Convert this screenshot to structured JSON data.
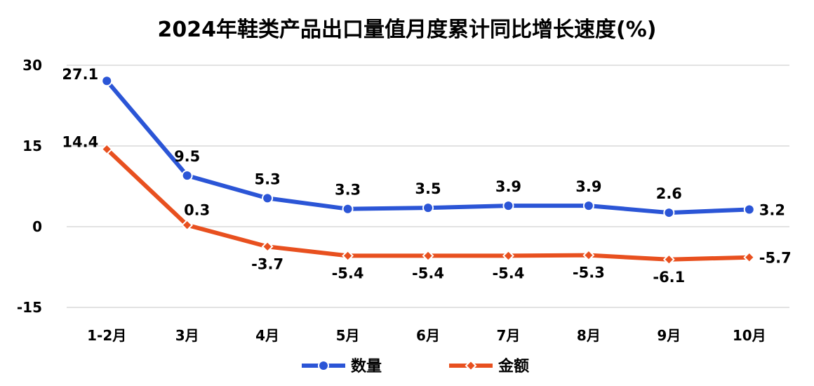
{
  "chart_data": {
    "type": "line",
    "title": "2024年鞋类产品出口量值月度累计同比增长速度(%)",
    "categories": [
      "1-2月",
      "3月",
      "4月",
      "5月",
      "6月",
      "7月",
      "8月",
      "9月",
      "10月"
    ],
    "series": [
      {
        "name": "数量",
        "color": "#2b55d6",
        "marker": "circle",
        "values": [
          27.1,
          9.5,
          5.3,
          3.3,
          3.5,
          3.9,
          3.9,
          2.6,
          3.2
        ],
        "labels": [
          "27.1",
          "9.5",
          "5.3",
          "3.3",
          "3.5",
          "3.9",
          "3.9",
          "2.6",
          "3.2"
        ]
      },
      {
        "name": "金额",
        "color": "#e8501f",
        "marker": "diamond",
        "values": [
          14.4,
          0.3,
          -3.7,
          -5.4,
          -5.4,
          -5.4,
          -5.3,
          -6.1,
          -5.7
        ],
        "labels": [
          "14.4",
          "0.3",
          "-3.7",
          "-5.4",
          "-5.4",
          "-5.4",
          "-5.3",
          "-6.1",
          "-5.7"
        ]
      }
    ],
    "ylim": [
      -15,
      30
    ],
    "yticks": [
      30,
      15,
      0,
      -15
    ],
    "grid": true,
    "legend": "bottom-center"
  }
}
